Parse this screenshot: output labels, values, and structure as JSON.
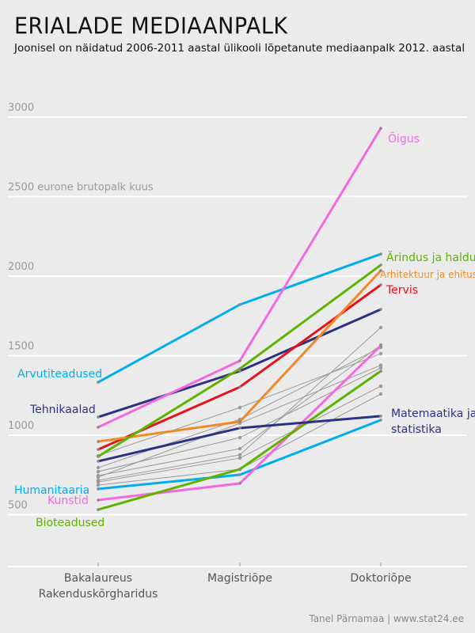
{
  "title": "ERIALADE MEDIAANPALK",
  "subtitle": "Joonisel on näidatud 2006-2011 aastal ülikooli lõpetanute mediaanpalk 2012. aastal",
  "footer": "Tanel Pärnamaa | www.stat24.ee",
  "chart_data": {
    "type": "line",
    "categories": [
      "Bakalaureus\nRakenduskõrgharidus",
      "Magistriõpe",
      "Doktoriõpe"
    ],
    "category_labels": [
      [
        "Bakalaureus",
        "Rakenduskõrgharidus"
      ],
      [
        "Magistriõpe"
      ],
      [
        "Doktoriõpe"
      ]
    ],
    "ylabel": "2500 eurone brutopalk kuus",
    "yticks": [
      3000,
      2000,
      1500,
      1000,
      500
    ],
    "ylim": [
      300,
      3100
    ],
    "grid": true,
    "series": [
      {
        "values": [
          871,
          1174,
          1512
        ],
        "color": "#999999"
      },
      {
        "values": [
          796,
          1100,
          1552
        ],
        "color": "#999999"
      },
      {
        "values": [
          771,
          985,
          1423
        ],
        "color": "#999999"
      },
      {
        "values": [
          746,
          915,
          1567
        ],
        "color": "#999999"
      },
      {
        "values": [
          716,
          876,
          1677
        ],
        "color": "#999999"
      },
      {
        "values": [
          706,
          856,
          1308
        ],
        "color": "#999999"
      },
      {
        "values": [
          686,
          786,
          1259
        ],
        "color": "#999999"
      },
      {
        "values": [
          736,
          1075,
          1440
        ],
        "color": "#999999"
      },
      {
        "name": "Humanitaaria",
        "values": [
          662,
          751,
          1095
        ],
        "color": "#00aeef",
        "label_side": "left"
      },
      {
        "name": "Kunstid",
        "values": [
          592,
          697,
          1562
        ],
        "color": "#f26ae0",
        "label_side": "left"
      },
      {
        "name": "Bioteadused",
        "values": [
          532,
          786,
          1403
        ],
        "color": "#5fb300",
        "label_side": "left"
      },
      {
        "name": "Matemaatika ja statistika",
        "label_lines": [
          "Matemaatika ja",
          "statistika"
        ],
        "values": [
          836,
          1045,
          1120
        ],
        "color": "#2b3284",
        "label_side": "right"
      },
      {
        "name": "Tehnikaalad",
        "values": [
          1114,
          1403,
          1791
        ],
        "color": "#2b3284",
        "label_side": "left"
      },
      {
        "name": "Tervis",
        "values": [
          910,
          1303,
          1945
        ],
        "color": "#e8101b",
        "label_side": "right"
      },
      {
        "name": "Arhitektuur ja ehitus",
        "values": [
          960,
          1085,
          2035
        ],
        "color": "#f0892a",
        "label_side": "right"
      },
      {
        "name": "Ärindus ja haldus",
        "values": [
          866,
          1418,
          2070
        ],
        "color": "#5fb300",
        "label_side": "right"
      },
      {
        "name": "Arvutiteadused",
        "values": [
          1333,
          1821,
          2139
        ],
        "color": "#00aeef",
        "label_side": "left"
      },
      {
        "name": "Õigus",
        "values": [
          1050,
          1468,
          2930
        ],
        "color": "#f26ae0",
        "label_side": "right"
      }
    ]
  }
}
